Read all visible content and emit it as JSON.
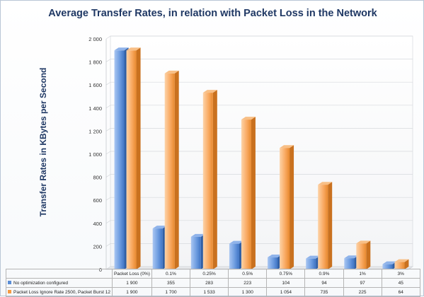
{
  "chart_data": {
    "type": "bar",
    "title": "Average Transfer Rates, in relation with Packet Loss in the Network",
    "ylabel": "Transfer Rates in  KBytes per Second",
    "xlabel": "",
    "ylim": [
      0,
      2000
    ],
    "yticks": [
      "0",
      "200",
      "400",
      "600",
      "800",
      "1 000",
      "1 200",
      "1 400",
      "1 600",
      "1 800",
      "2 000"
    ],
    "categories": [
      "Packet Loss (0%)",
      "0.1%",
      "0.25%",
      "0.5%",
      "0.75%",
      "0.9%",
      "1%",
      "3%"
    ],
    "series": [
      {
        "name": "No optimization configured",
        "color": "#5b8ed6",
        "values": [
          1900,
          355,
          283,
          223,
          104,
          94,
          97,
          45
        ],
        "labels": [
          "1 900",
          "355",
          "283",
          "223",
          "104",
          "94",
          "97",
          "45"
        ]
      },
      {
        "name": "Packet Loss Ignore Rate 2500, Packet Burst 12",
        "color": "#f59a42",
        "values": [
          1900,
          1700,
          1533,
          1300,
          1054,
          735,
          225,
          64
        ],
        "labels": [
          "1 900",
          "1 700",
          "1 533",
          "1 300",
          "1 054",
          "735",
          "225",
          "64"
        ]
      }
    ],
    "grid": true,
    "legend": "data table below chart"
  }
}
